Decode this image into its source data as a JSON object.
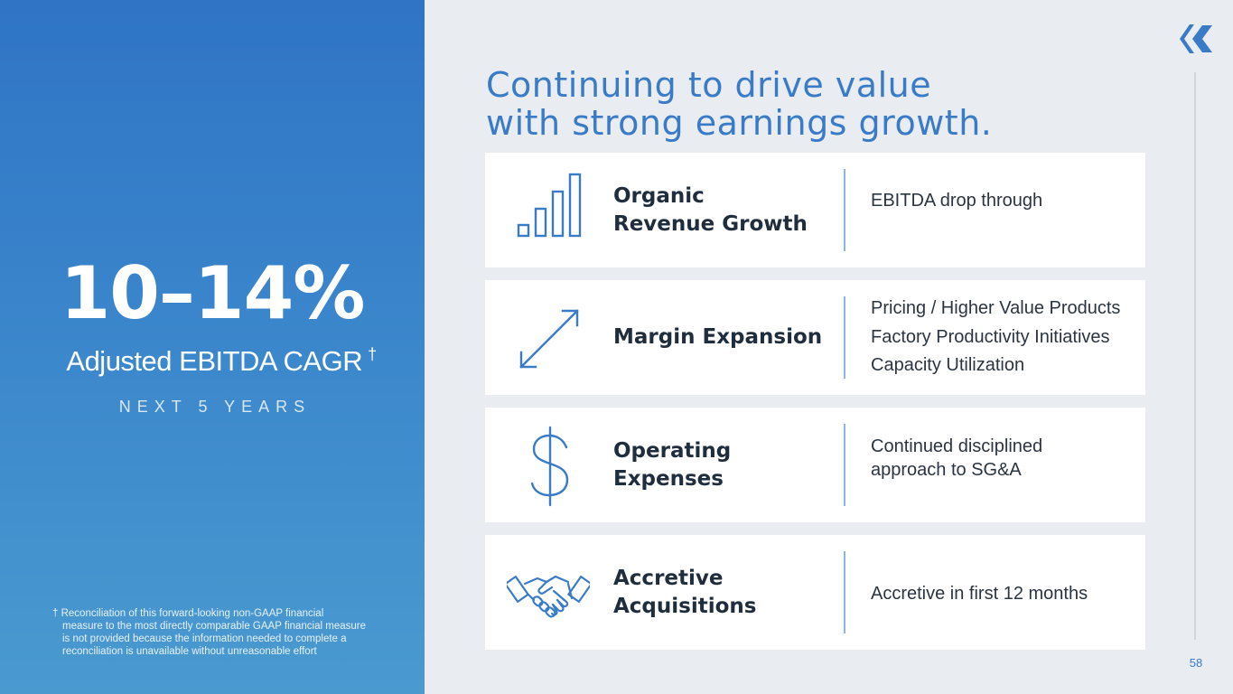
{
  "left_panel": {
    "metric_value": "10–14%",
    "metric_label": "Adjusted EBITDA CAGR",
    "metric_label_mark": "†",
    "metric_period": "NEXT 5 YEARS",
    "footnote_mark": "†",
    "footnote_lines": [
      "Reconciliation of this forward-looking non-GAAP financial",
      "measure to the most directly comparable GAAP financial measure",
      "is not provided because the information needed to complete a",
      "reconciliation is unavailable without unreasonable effort"
    ],
    "gradient_top_color": "#2f74c5",
    "gradient_bottom_color": "#4a9ad0"
  },
  "title": {
    "line1": "Continuing to drive value",
    "line2": "with strong earnings growth.",
    "color": "#3a7bc8"
  },
  "cards": [
    {
      "icon": "bar-chart-icon",
      "heading_lines": [
        "Organic",
        "Revenue Growth"
      ],
      "desc_lines": [
        "EBITDA drop through"
      ]
    },
    {
      "icon": "diagonal-arrows-icon",
      "heading_lines": [
        "Margin Expansion"
      ],
      "desc_lines": [
        "Pricing / Higher Value Products",
        "Factory Productivity Initiatives",
        "Capacity Utilization"
      ]
    },
    {
      "icon": "dollar-sign-icon",
      "heading_lines": [
        "Operating",
        "Expenses"
      ],
      "desc_lines": [
        "Continued disciplined",
        "approach to SG&A"
      ]
    },
    {
      "icon": "handshake-icon",
      "heading_lines": [
        "Accretive",
        "Acquisitions"
      ],
      "desc_lines": [
        "Accretive in first 12 months"
      ]
    }
  ],
  "logo_icon": "chevron-logo-icon",
  "page_number": "58",
  "accent_color": "#3a7bc8"
}
